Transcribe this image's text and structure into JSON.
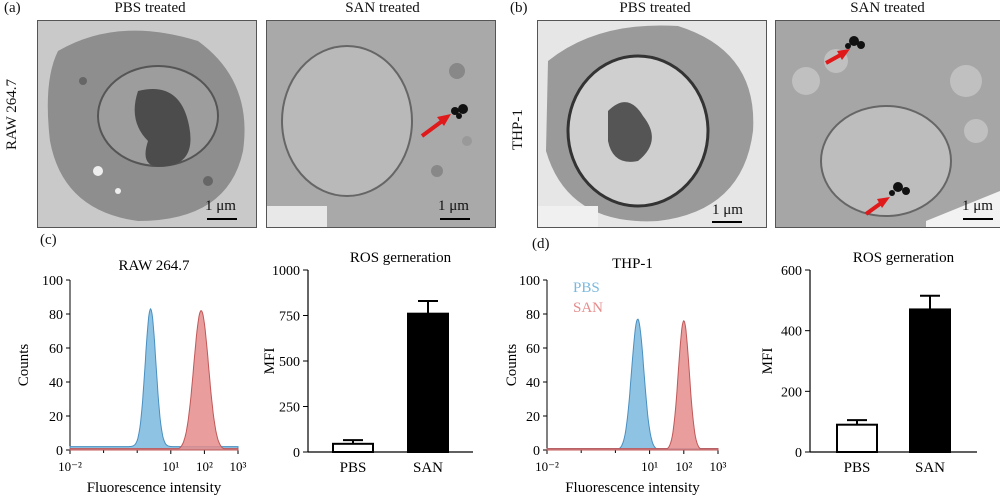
{
  "panels": {
    "a": {
      "letter": "(a)",
      "cell_line": "RAW 264.7",
      "left_title": "PBS treated",
      "right_title": "SAN treated",
      "scale_left": "1 μm",
      "scale_right": "1 μm"
    },
    "b": {
      "letter": "(b)",
      "cell_line": "THP-1",
      "left_title": "PBS treated",
      "right_title": "SAN treated",
      "scale_left": "1 μm",
      "scale_right": "1 μm"
    },
    "c": {
      "letter": "(c)"
    },
    "d": {
      "letter": "(d)"
    }
  },
  "colors": {
    "pbs": "#7ab8de",
    "san": "#e58c8c",
    "bar_pbs": "#ffffff",
    "bar_san": "#000000",
    "arrow": "#e0191b"
  },
  "chart_data": [
    {
      "id": "c-hist",
      "type": "area",
      "title": "RAW 264.7",
      "xlabel": "Fluorescence intensity",
      "ylabel": "Counts",
      "xscale": "log",
      "xlim": [
        0.01,
        1000
      ],
      "ylim": [
        0,
        100
      ],
      "x_ticks": [
        "10⁻²",
        "10¹",
        "10²",
        "10³"
      ],
      "y_ticks": [
        0,
        20,
        40,
        60,
        80,
        100
      ],
      "series": [
        {
          "peak_x": 2.5,
          "peak_y": 83,
          "width": 0.16,
          "base": 2
        },
        {
          "peak_x": 80,
          "peak_y": 82,
          "width": 0.22,
          "base": 0
        }
      ]
    },
    {
      "id": "c-bar",
      "type": "bar",
      "title": "ROS gerneration",
      "ylabel": "MFI",
      "categories": [
        "PBS",
        "SAN"
      ],
      "values": [
        45,
        760
      ],
      "errors": [
        20,
        70
      ],
      "ylim": [
        0,
        1000
      ],
      "y_ticks": [
        0,
        250,
        500,
        750,
        1000
      ]
    },
    {
      "id": "d-hist",
      "type": "area",
      "title": "THP-1",
      "xlabel": "Fluorescence  intensity",
      "ylabel": "Counts",
      "xscale": "log",
      "xlim": [
        0.01,
        1000
      ],
      "ylim": [
        0,
        100
      ],
      "x_ticks": [
        "10⁻²",
        "10¹",
        "10²",
        "10³"
      ],
      "y_ticks": [
        0,
        20,
        40,
        60,
        80,
        100
      ],
      "legend": [
        "PBS",
        "SAN"
      ],
      "series": [
        {
          "name": "PBS",
          "peak_x": 4.5,
          "peak_y": 77,
          "width": 0.18,
          "base": 0
        },
        {
          "name": "SAN",
          "peak_x": 100,
          "peak_y": 76,
          "width": 0.16,
          "base": 0
        }
      ]
    },
    {
      "id": "d-bar",
      "type": "bar",
      "title": "ROS gerneration",
      "ylabel": "MFI",
      "categories": [
        "PBS",
        "SAN"
      ],
      "values": [
        90,
        470
      ],
      "errors": [
        15,
        45
      ],
      "ylim": [
        0,
        600
      ],
      "y_ticks": [
        0,
        200,
        400,
        600
      ]
    }
  ]
}
